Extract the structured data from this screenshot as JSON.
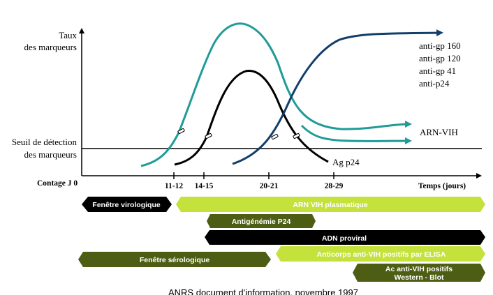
{
  "axis": {
    "y_label_line1": "Taux",
    "y_label_line2": "des marqueurs",
    "threshold_label_line1": "Seuil de détection",
    "threshold_label_line2": "des marqueurs",
    "x_origin_label": "Contage J 0",
    "x_unit_label": "Temps (jours)",
    "ticks": [
      {
        "label": "11-12"
      },
      {
        "label": "14-15"
      },
      {
        "label": "20-21"
      },
      {
        "label": "28-29"
      }
    ]
  },
  "curves": {
    "antibodies": {
      "labels": [
        "anti-gp 160",
        "anti-gp 120",
        "anti-gp 41",
        "anti-p24"
      ],
      "color": "#123e6b"
    },
    "arn": {
      "label": "ARN-VIH",
      "color": "#1f9b98"
    },
    "p24": {
      "label": "Ag p24",
      "color": "#000000"
    }
  },
  "bands": [
    {
      "label": "Fenêtre virologique",
      "color": "#000000",
      "text_color": "#ffffff"
    },
    {
      "label": "ARN VIH plasmatique",
      "color": "#c4e23b",
      "text_color": "#ffffff"
    },
    {
      "label": "Antigénémie P24",
      "color": "#4d5e14",
      "text_color": "#ffffff"
    },
    {
      "label": "ADN proviral",
      "color": "#000000",
      "text_color": "#ffffff"
    },
    {
      "label": "Fenêtre sérologique",
      "color": "#4d5e14",
      "text_color": "#ffffff"
    },
    {
      "label": "Anticorps anti-VIH positifs par ELISA",
      "color": "#c4e23b",
      "text_color": "#ffffff"
    },
    {
      "label_line1": "Ac anti-VIH positifs",
      "label_line2": "Western - Blot",
      "color": "#4d5e14",
      "text_color": "#ffffff"
    }
  ],
  "footer": {
    "source": "ANRS document d'information, novembre 1997"
  }
}
